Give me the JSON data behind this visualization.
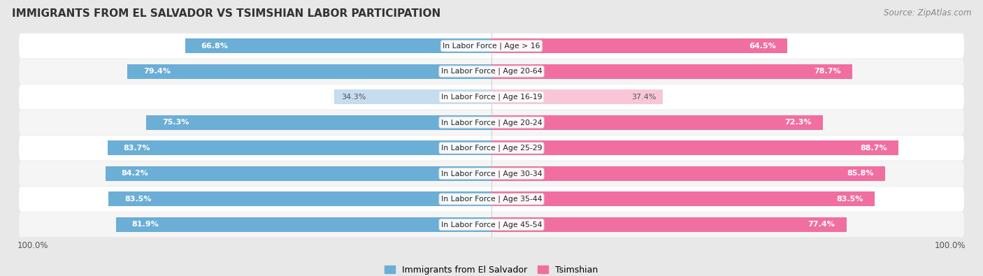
{
  "title": "IMMIGRANTS FROM EL SALVADOR VS TSIMSHIAN LABOR PARTICIPATION",
  "source": "Source: ZipAtlas.com",
  "categories": [
    "In Labor Force | Age > 16",
    "In Labor Force | Age 20-64",
    "In Labor Force | Age 16-19",
    "In Labor Force | Age 20-24",
    "In Labor Force | Age 25-29",
    "In Labor Force | Age 30-34",
    "In Labor Force | Age 35-44",
    "In Labor Force | Age 45-54"
  ],
  "salvador_values": [
    66.8,
    79.4,
    34.3,
    75.3,
    83.7,
    84.2,
    83.5,
    81.9
  ],
  "tsimshian_values": [
    64.5,
    78.7,
    37.4,
    72.3,
    88.7,
    85.8,
    83.5,
    77.4
  ],
  "salvador_color": "#6baed6",
  "tsimshian_color": "#f06fa0",
  "salvador_color_light": "#c6dcef",
  "tsimshian_color_light": "#f9c6d8",
  "row_bg_odd": "#f5f5f5",
  "row_bg_even": "#ffffff",
  "center_bg": "#ffffff",
  "bar_height": 0.58,
  "max_val": 100.0,
  "figsize": [
    14.06,
    3.95
  ],
  "dpi": 100
}
